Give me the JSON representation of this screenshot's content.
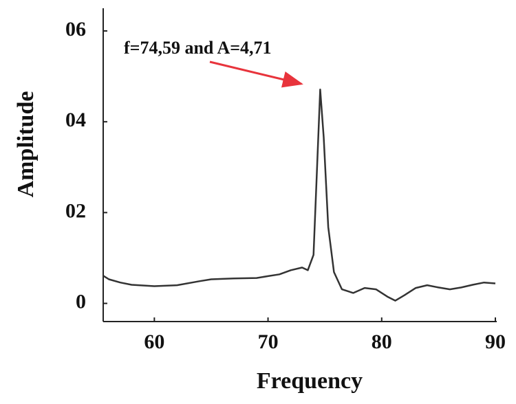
{
  "chart_data": {
    "type": "line",
    "x_label": "Frequency",
    "y_label": "Amplitude",
    "annotation": "f=74,59  and  A=4,71",
    "annotation_color": "#e8343c",
    "x": [
      55.5,
      56,
      57,
      58,
      60,
      62,
      64,
      65,
      67,
      69,
      70,
      71,
      72,
      73,
      73.5,
      74,
      74.3,
      74.59,
      74.9,
      75.3,
      75.8,
      76.5,
      77.5,
      78.5,
      79.5,
      80.5,
      81.2,
      82,
      83,
      84,
      85,
      86,
      87,
      88,
      89,
      90
    ],
    "series": [
      {
        "color": "#333333",
        "values": [
          0.61,
          0.53,
          0.46,
          0.41,
          0.38,
          0.4,
          0.49,
          0.53,
          0.55,
          0.56,
          0.6,
          0.64,
          0.73,
          0.79,
          0.73,
          1.07,
          2.9,
          4.71,
          3.66,
          1.68,
          0.69,
          0.31,
          0.23,
          0.34,
          0.31,
          0.15,
          0.06,
          0.18,
          0.34,
          0.4,
          0.35,
          0.31,
          0.35,
          0.41,
          0.46,
          0.44
        ]
      }
    ],
    "xlim": [
      55.5,
      90
    ],
    "xticks": [
      60,
      70,
      80,
      90
    ],
    "ylim": [
      -0.4,
      6.5
    ],
    "yticks": [
      0,
      {
        "value": 2,
        "label": "02"
      },
      {
        "value": 4,
        "label": "04"
      },
      {
        "value": 6,
        "label": "06"
      }
    ]
  }
}
